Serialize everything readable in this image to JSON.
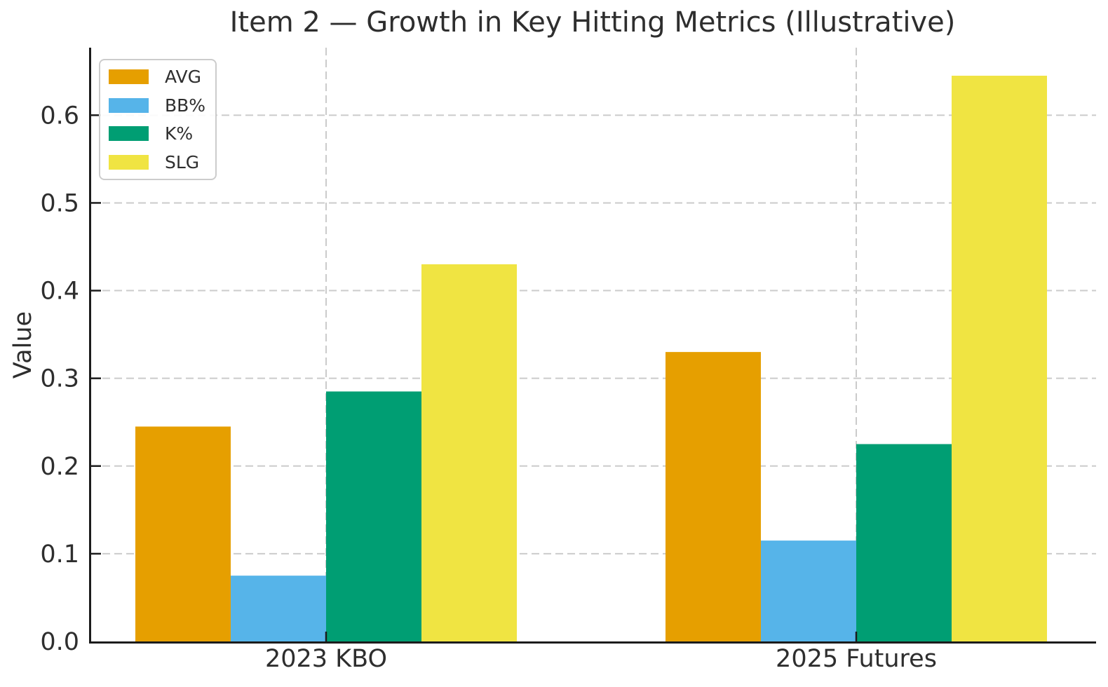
{
  "chart_data": {
    "type": "bar",
    "title": "Item 2 — Growth in Key Hitting Metrics (Illustrative)",
    "xlabel": "",
    "ylabel": "Value",
    "categories": [
      "2023 KBO",
      "2025 Futures"
    ],
    "series": [
      {
        "name": "AVG",
        "color": "#E69F00",
        "values": [
          0.245,
          0.33
        ]
      },
      {
        "name": "BB%",
        "color": "#56B4E9",
        "values": [
          0.075,
          0.115
        ]
      },
      {
        "name": "K%",
        "color": "#009E73",
        "values": [
          0.285,
          0.225
        ]
      },
      {
        "name": "SLG",
        "color": "#F0E442",
        "values": [
          0.43,
          0.645
        ]
      }
    ],
    "ylim": [
      0,
      0.677
    ],
    "yticks": [
      0.0,
      0.1,
      0.2,
      0.3,
      0.4,
      0.5,
      0.6
    ],
    "ytick_labels": [
      "0.0",
      "0.1",
      "0.2",
      "0.3",
      "0.4",
      "0.5",
      "0.6"
    ],
    "grid": true,
    "grid_style": "dashed",
    "legend_position": "upper-left",
    "legend_labels": [
      "AVG",
      "BB%",
      "K%",
      "SLG"
    ]
  },
  "colors": {
    "background": "#ffffff",
    "axis": "#1c1c1c",
    "grid": "#cbcbcb",
    "text": "#2e2e2e",
    "legend_border": "#cccccc"
  }
}
